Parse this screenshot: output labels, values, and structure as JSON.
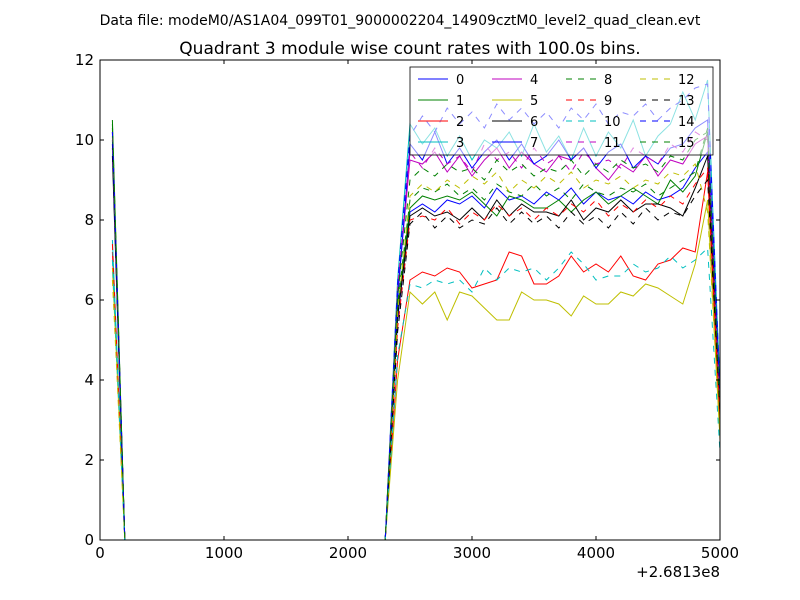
{
  "suptitle": "Data file: modeM0/AS1A04_099T01_9000002204_14909cztM0_level2_quad_clean.evt",
  "chart_data": {
    "type": "line",
    "title": "Quadrant 3 module wise count rates with 100.0s bins.",
    "xlabel": "",
    "ylabel": "",
    "x_offset_label": "+2.6813e8",
    "xlim": [
      0,
      5000
    ],
    "ylim": [
      0,
      12
    ],
    "x_ticks": [
      0,
      1000,
      2000,
      3000,
      4000,
      5000
    ],
    "y_ticks": [
      0,
      2,
      4,
      6,
      8,
      10,
      12
    ],
    "grid": false,
    "legend_position": "top-right",
    "x": [
      100,
      200,
      300,
      400,
      500,
      600,
      700,
      800,
      900,
      1000,
      1100,
      1200,
      1300,
      1400,
      1500,
      1600,
      1700,
      1800,
      1900,
      2000,
      2100,
      2200,
      2300,
      2400,
      2500,
      2600,
      2700,
      2800,
      2900,
      3000,
      3100,
      3200,
      3300,
      3400,
      3500,
      3600,
      3700,
      3800,
      3900,
      4000,
      4100,
      4200,
      4300,
      4400,
      4500,
      4600,
      4700,
      4800,
      4900,
      5000
    ],
    "series": [
      {
        "name": "0",
        "color": "#0000ff",
        "dash": "solid",
        "values": [
          9.8,
          0,
          0,
          0,
          0,
          0,
          0,
          0,
          0,
          0,
          0,
          0,
          0,
          0,
          0,
          0,
          0,
          0,
          0,
          0,
          0,
          0,
          0,
          5.5,
          8.2,
          8.4,
          8.2,
          8.5,
          8.4,
          8.6,
          8.3,
          8.8,
          8.5,
          8.6,
          8.4,
          8.7,
          8.5,
          8.8,
          8.4,
          8.7,
          8.5,
          8.6,
          8.4,
          8.7,
          8.5,
          8.6,
          8.8,
          9.3,
          9.7,
          3.2
        ]
      },
      {
        "name": "1",
        "color": "#008000",
        "dash": "solid",
        "values": [
          10.5,
          0,
          0,
          0,
          0,
          0,
          0,
          0,
          0,
          0,
          0,
          0,
          0,
          0,
          0,
          0,
          0,
          0,
          0,
          0,
          0,
          0,
          0,
          5.8,
          8.3,
          8.6,
          8.5,
          8.6,
          8.5,
          8.7,
          8.4,
          8.1,
          8.6,
          8.5,
          8.3,
          8.3,
          8.5,
          8.2,
          8.5,
          8.7,
          8.4,
          8.6,
          8.8,
          8.6,
          8.4,
          9.0,
          8.7,
          9.1,
          10.2,
          3.0
        ]
      },
      {
        "name": "2",
        "color": "#ff0000",
        "dash": "solid",
        "values": [
          7.2,
          0,
          0,
          0,
          0,
          0,
          0,
          0,
          0,
          0,
          0,
          0,
          0,
          0,
          0,
          0,
          0,
          0,
          0,
          0,
          0,
          0,
          0,
          4.5,
          6.5,
          6.7,
          6.6,
          6.8,
          6.7,
          6.3,
          6.4,
          6.5,
          7.2,
          7.1,
          6.4,
          6.4,
          6.6,
          7.1,
          6.7,
          6.9,
          6.7,
          7.1,
          6.6,
          6.5,
          6.9,
          7.0,
          7.3,
          7.2,
          9.2,
          2.8
        ]
      },
      {
        "name": "3",
        "color": "#00bfbf",
        "dash": "solid",
        "values": [
          7.5,
          0,
          0,
          0,
          0,
          0,
          0,
          0,
          0,
          0,
          0,
          0,
          0,
          0,
          0,
          0,
          0,
          0,
          0,
          0,
          0,
          0,
          0,
          6.5,
          10.4,
          9.9,
          10.3,
          9.6,
          10.1,
          9.5,
          10.0,
          9.8,
          10.2,
          9.6,
          10.4,
          9.7,
          10.1,
          9.5,
          10.3,
          9.6,
          10.2,
          9.8,
          10.5,
          9.6,
          10.1,
          10.4,
          11.2,
          10.5,
          11.5,
          3.8
        ]
      },
      {
        "name": "4",
        "color": "#bf00bf",
        "dash": "solid",
        "values": [
          10.2,
          0,
          0,
          0,
          0,
          0,
          0,
          0,
          0,
          0,
          0,
          0,
          0,
          0,
          0,
          0,
          0,
          0,
          0,
          0,
          0,
          0,
          0,
          6.2,
          9.5,
          9.4,
          9.7,
          9.2,
          9.6,
          9.1,
          9.5,
          9.8,
          9.3,
          9.7,
          9.4,
          9.2,
          9.6,
          9.5,
          9.8,
          9.3,
          9.0,
          9.4,
          9.2,
          9.6,
          9.1,
          9.5,
          9.4,
          9.9,
          10.1,
          3.5
        ]
      },
      {
        "name": "5",
        "color": "#bfbf00",
        "dash": "solid",
        "values": [
          6.8,
          0,
          0,
          0,
          0,
          0,
          0,
          0,
          0,
          0,
          0,
          0,
          0,
          0,
          0,
          0,
          0,
          0,
          0,
          0,
          0,
          0,
          0,
          4.0,
          6.2,
          5.9,
          6.2,
          5.5,
          6.2,
          6.1,
          5.8,
          5.5,
          5.5,
          6.2,
          6.0,
          6.0,
          5.9,
          5.6,
          6.1,
          5.9,
          5.9,
          6.2,
          6.1,
          6.4,
          6.3,
          6.1,
          5.9,
          6.9,
          8.5,
          2.5
        ]
      },
      {
        "name": "6",
        "color": "#000000",
        "dash": "solid",
        "values": [
          9.6,
          0,
          0,
          0,
          0,
          0,
          0,
          0,
          0,
          0,
          0,
          0,
          0,
          0,
          0,
          0,
          0,
          0,
          0,
          0,
          0,
          0,
          0,
          5.6,
          8.1,
          8.3,
          8.1,
          8.2,
          8.0,
          8.3,
          8.0,
          8.5,
          8.1,
          8.4,
          8.2,
          8.2,
          8.1,
          8.5,
          8.0,
          8.3,
          8.2,
          8.5,
          8.2,
          8.4,
          8.4,
          8.3,
          8.1,
          8.8,
          9.6,
          3.3
        ]
      },
      {
        "name": "7",
        "color": "#0000ff",
        "dash": "solid",
        "values": [
          10.0,
          0,
          0,
          0,
          0,
          0,
          0,
          0,
          0,
          0,
          0,
          0,
          0,
          0,
          0,
          0,
          0,
          0,
          0,
          0,
          0,
          0,
          0,
          6.0,
          9.9,
          9.5,
          10.2,
          9.4,
          9.8,
          9.3,
          9.7,
          10.0,
          9.5,
          9.9,
          9.4,
          9.6,
          10.0,
          9.5,
          9.8,
          9.3,
          9.7,
          9.9,
          9.3,
          9.6,
          9.4,
          9.8,
          9.9,
          10.3,
          10.5,
          3.6
        ]
      },
      {
        "name": "8",
        "color": "#008000",
        "dash": "dashed",
        "values": [
          10.3,
          0,
          0,
          0,
          0,
          0,
          0,
          0,
          0,
          0,
          0,
          0,
          0,
          0,
          0,
          0,
          0,
          0,
          0,
          0,
          0,
          0,
          0,
          5.9,
          8.5,
          8.8,
          8.7,
          8.9,
          8.6,
          8.8,
          8.5,
          8.9,
          8.7,
          8.6,
          8.9,
          8.6,
          8.8,
          8.5,
          8.9,
          8.7,
          8.6,
          8.8,
          8.7,
          8.9,
          8.6,
          8.8,
          9.0,
          9.2,
          10.3,
          3.1
        ]
      },
      {
        "name": "9",
        "color": "#ff0000",
        "dash": "dashed",
        "values": [
          7.4,
          0,
          0,
          0,
          0,
          0,
          0,
          0,
          0,
          0,
          0,
          0,
          0,
          0,
          0,
          0,
          0,
          0,
          0,
          0,
          0,
          0,
          0,
          5.3,
          8.0,
          8.1,
          8.0,
          8.3,
          7.9,
          8.2,
          8.0,
          8.4,
          8.1,
          8.3,
          8.0,
          8.3,
          8.1,
          8.4,
          8.2,
          8.5,
          8.1,
          8.4,
          8.2,
          8.5,
          8.3,
          8.6,
          8.4,
          8.9,
          9.3,
          3.0
        ]
      },
      {
        "name": "10",
        "color": "#00bfbf",
        "dash": "dashed",
        "values": [
          7.0,
          0,
          0,
          0,
          0,
          0,
          0,
          0,
          0,
          0,
          0,
          0,
          0,
          0,
          0,
          0,
          0,
          0,
          0,
          0,
          0,
          0,
          0,
          4.6,
          6.4,
          6.3,
          6.5,
          6.4,
          6.5,
          6.2,
          6.8,
          6.5,
          6.8,
          6.7,
          6.8,
          6.5,
          6.8,
          7.2,
          6.9,
          6.5,
          6.6,
          6.6,
          6.9,
          6.7,
          6.8,
          7.1,
          6.8,
          7.0,
          7.3,
          2.2
        ]
      },
      {
        "name": "11",
        "color": "#bf00bf",
        "dash": "dashed",
        "values": [
          10.1,
          0,
          0,
          0,
          0,
          0,
          0,
          0,
          0,
          0,
          0,
          0,
          0,
          0,
          0,
          0,
          0,
          0,
          0,
          0,
          0,
          0,
          0,
          6.3,
          9.7,
          9.3,
          9.8,
          9.4,
          9.6,
          9.2,
          9.9,
          9.5,
          9.7,
          9.3,
          9.8,
          9.4,
          9.6,
          9.2,
          9.7,
          9.4,
          9.5,
          9.3,
          9.8,
          9.6,
          9.4,
          9.9,
          9.7,
          10.2,
          10.0,
          3.4
        ]
      },
      {
        "name": "12",
        "color": "#bfbf00",
        "dash": "dashed",
        "values": [
          6.5,
          0,
          0,
          0,
          0,
          0,
          0,
          0,
          0,
          0,
          0,
          0,
          0,
          0,
          0,
          0,
          0,
          0,
          0,
          0,
          0,
          0,
          0,
          5.7,
          8.6,
          8.9,
          8.7,
          9.0,
          8.8,
          9.1,
          8.9,
          9.2,
          8.7,
          9.0,
          8.8,
          9.1,
          8.9,
          9.2,
          8.8,
          9.0,
          8.9,
          9.1,
          8.8,
          9.0,
          8.9,
          9.2,
          9.1,
          9.4,
          8.2,
          2.6
        ]
      },
      {
        "name": "13",
        "color": "#000000",
        "dash": "dashed",
        "values": [
          9.9,
          0,
          0,
          0,
          0,
          0,
          0,
          0,
          0,
          0,
          0,
          0,
          0,
          0,
          0,
          0,
          0,
          0,
          0,
          0,
          0,
          0,
          0,
          5.2,
          7.9,
          8.2,
          7.8,
          8.1,
          7.8,
          8.0,
          7.9,
          8.3,
          7.9,
          8.2,
          7.9,
          8.1,
          7.8,
          8.2,
          7.9,
          8.1,
          7.8,
          8.2,
          7.9,
          8.3,
          8.0,
          8.2,
          8.1,
          8.6,
          9.0,
          3.2
        ]
      },
      {
        "name": "14",
        "color": "#0000ff",
        "dash": "dashed",
        "values": [
          10.2,
          0,
          0,
          0,
          0,
          0,
          0,
          0,
          0,
          0,
          0,
          0,
          0,
          0,
          0,
          0,
          0,
          0,
          0,
          0,
          0,
          0,
          0,
          6.4,
          10.1,
          10.6,
          10.2,
          10.8,
          10.4,
          10.7,
          10.3,
          10.9,
          10.5,
          10.8,
          10.4,
          10.7,
          10.3,
          10.8,
          10.5,
          10.9,
          10.4,
          10.7,
          10.6,
          10.9,
          10.5,
          10.8,
          11.0,
          11.3,
          11.4,
          3.7
        ]
      },
      {
        "name": "15",
        "color": "#008000",
        "dash": "dashed",
        "values": [
          10.4,
          0,
          0,
          0,
          0,
          0,
          0,
          0,
          0,
          0,
          0,
          0,
          0,
          0,
          0,
          0,
          0,
          0,
          0,
          0,
          0,
          0,
          0,
          6.1,
          9.0,
          9.3,
          9.1,
          9.4,
          9.2,
          9.3,
          9.0,
          9.5,
          9.2,
          9.4,
          9.1,
          9.3,
          9.2,
          9.5,
          9.1,
          9.4,
          9.2,
          9.5,
          9.3,
          9.4,
          9.2,
          9.6,
          9.5,
          10.0,
          10.2,
          3.3
        ]
      }
    ]
  }
}
